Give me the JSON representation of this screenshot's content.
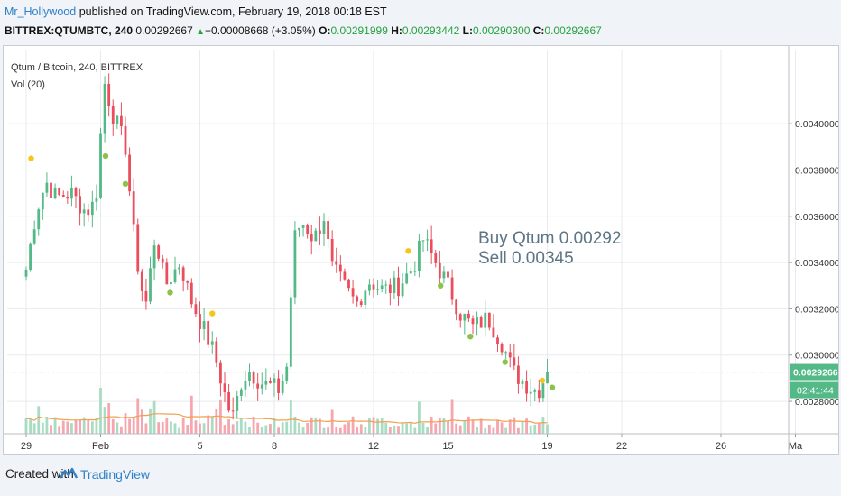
{
  "header": {
    "author": "Mr_Hollywood",
    "published_text": "published on TradingView.com, February 19, 2018 00:18 EST",
    "symbol_line": {
      "symbol": "BITTREX:QTUMBTC, 240",
      "last": "0.00292667",
      "change": "+0.00008668 (+3.05%)",
      "o_label": "O:",
      "o_value": "0.00291999",
      "h_label": "H:",
      "h_value": "0.00293442",
      "l_label": "L:",
      "l_value": "0.00290300",
      "c_label": "C:",
      "c_value": "0.00292667"
    }
  },
  "chart_labels": {
    "pair": "Qtum / Bitcoin, 240, BITTREX",
    "vol": "Vol (20)"
  },
  "annotation": {
    "line1": "Buy Qtum 0.00292",
    "line2": "Sell 0.00345"
  },
  "footer": {
    "created_with": "Created with",
    "brand": "TradingView"
  },
  "colors": {
    "up": "#53b987",
    "down": "#eb4d5c",
    "vol_up": "#a9dcc3",
    "vol_down": "#f5a6ae",
    "vol_ma": "#f0a050",
    "dot_green": "#8bc34a",
    "dot_yellow": "#f5c518",
    "last_price_bg": "#53b987",
    "accent": "#2f80c8"
  },
  "chart_data": {
    "type": "candlestick",
    "symbol": "QTUMBTC",
    "interval": "240",
    "exchange": "BITTREX",
    "y_ticks": [
      0.0028,
      0.003,
      0.0032,
      0.0034,
      0.0036,
      0.0038,
      0.004
    ],
    "y_tick_labels": [
      "0.00280000",
      "0.00300000",
      "0.00320000",
      "0.00340000",
      "0.00360000",
      "0.00380000",
      "0.00400000"
    ],
    "ylim": [
      0.00266,
      0.00432
    ],
    "x_tick_labels": [
      "29",
      "Feb",
      "5",
      "8",
      "12",
      "15",
      "19",
      "22",
      "26",
      "Ma"
    ],
    "x_tick_days": [
      0,
      3,
      7,
      10,
      14,
      17,
      21,
      24,
      28,
      31
    ],
    "x_start": "Jan 29",
    "last_price_label": "0.00292667",
    "countdown_label": "02:41:44",
    "annotation_levels": {
      "buy": 0.00292,
      "sell": 0.00345
    },
    "anchors": [
      [
        0,
        0.00337
      ],
      [
        0.4,
        0.00362
      ],
      [
        0.8,
        0.00375
      ],
      [
        1.2,
        0.00368
      ],
      [
        1.8,
        0.0037
      ],
      [
        2.4,
        0.00362
      ],
      [
        2.8,
        0.00366
      ],
      [
        3.0,
        0.00395
      ],
      [
        3.1,
        0.0042
      ],
      [
        3.5,
        0.00404
      ],
      [
        4.0,
        0.0039
      ],
      [
        4.4,
        0.00345
      ],
      [
        4.8,
        0.0032
      ],
      [
        5.2,
        0.00352
      ],
      [
        5.6,
        0.0033
      ],
      [
        6.2,
        0.0034
      ],
      [
        6.6,
        0.00325
      ],
      [
        7.2,
        0.0031
      ],
      [
        7.6,
        0.003
      ],
      [
        8.0,
        0.00283
      ],
      [
        8.3,
        0.00272
      ],
      [
        8.7,
        0.0029
      ],
      [
        9.0,
        0.00293
      ],
      [
        9.5,
        0.00288
      ],
      [
        10.2,
        0.00285
      ],
      [
        10.5,
        0.00295
      ],
      [
        10.8,
        0.0035
      ],
      [
        11.1,
        0.00358
      ],
      [
        11.6,
        0.0035
      ],
      [
        12.0,
        0.0036
      ],
      [
        12.3,
        0.00338
      ],
      [
        12.8,
        0.0033
      ],
      [
        13.3,
        0.00322
      ],
      [
        13.8,
        0.00332
      ],
      [
        14.4,
        0.00328
      ],
      [
        15.0,
        0.0033
      ],
      [
        15.6,
        0.00338
      ],
      [
        16.0,
        0.0035
      ],
      [
        16.5,
        0.0034
      ],
      [
        17.0,
        0.0033
      ],
      [
        17.5,
        0.00318
      ],
      [
        18.0,
        0.00312
      ],
      [
        18.6,
        0.00316
      ],
      [
        19.2,
        0.00305
      ],
      [
        19.6,
        0.00293
      ],
      [
        20.2,
        0.00287
      ],
      [
        20.6,
        0.00284
      ],
      [
        21.0,
        0.00292667
      ]
    ],
    "dots": [
      {
        "day": 0.2,
        "value": 0.00385,
        "color": "yellow"
      },
      {
        "day": 3.2,
        "value": 0.00386,
        "color": "green"
      },
      {
        "day": 4.0,
        "value": 0.00374,
        "color": "green"
      },
      {
        "day": 5.8,
        "value": 0.00327,
        "color": "green"
      },
      {
        "day": 7.5,
        "value": 0.00318,
        "color": "yellow"
      },
      {
        "day": 15.4,
        "value": 0.00345,
        "color": "yellow"
      },
      {
        "day": 16.7,
        "value": 0.0033,
        "color": "green"
      },
      {
        "day": 17.9,
        "value": 0.00308,
        "color": "green"
      },
      {
        "day": 19.3,
        "value": 0.00297,
        "color": "green"
      },
      {
        "day": 20.8,
        "value": 0.00289,
        "color": "yellow"
      },
      {
        "day": 21.2,
        "value": 0.00286,
        "color": "green"
      }
    ]
  }
}
